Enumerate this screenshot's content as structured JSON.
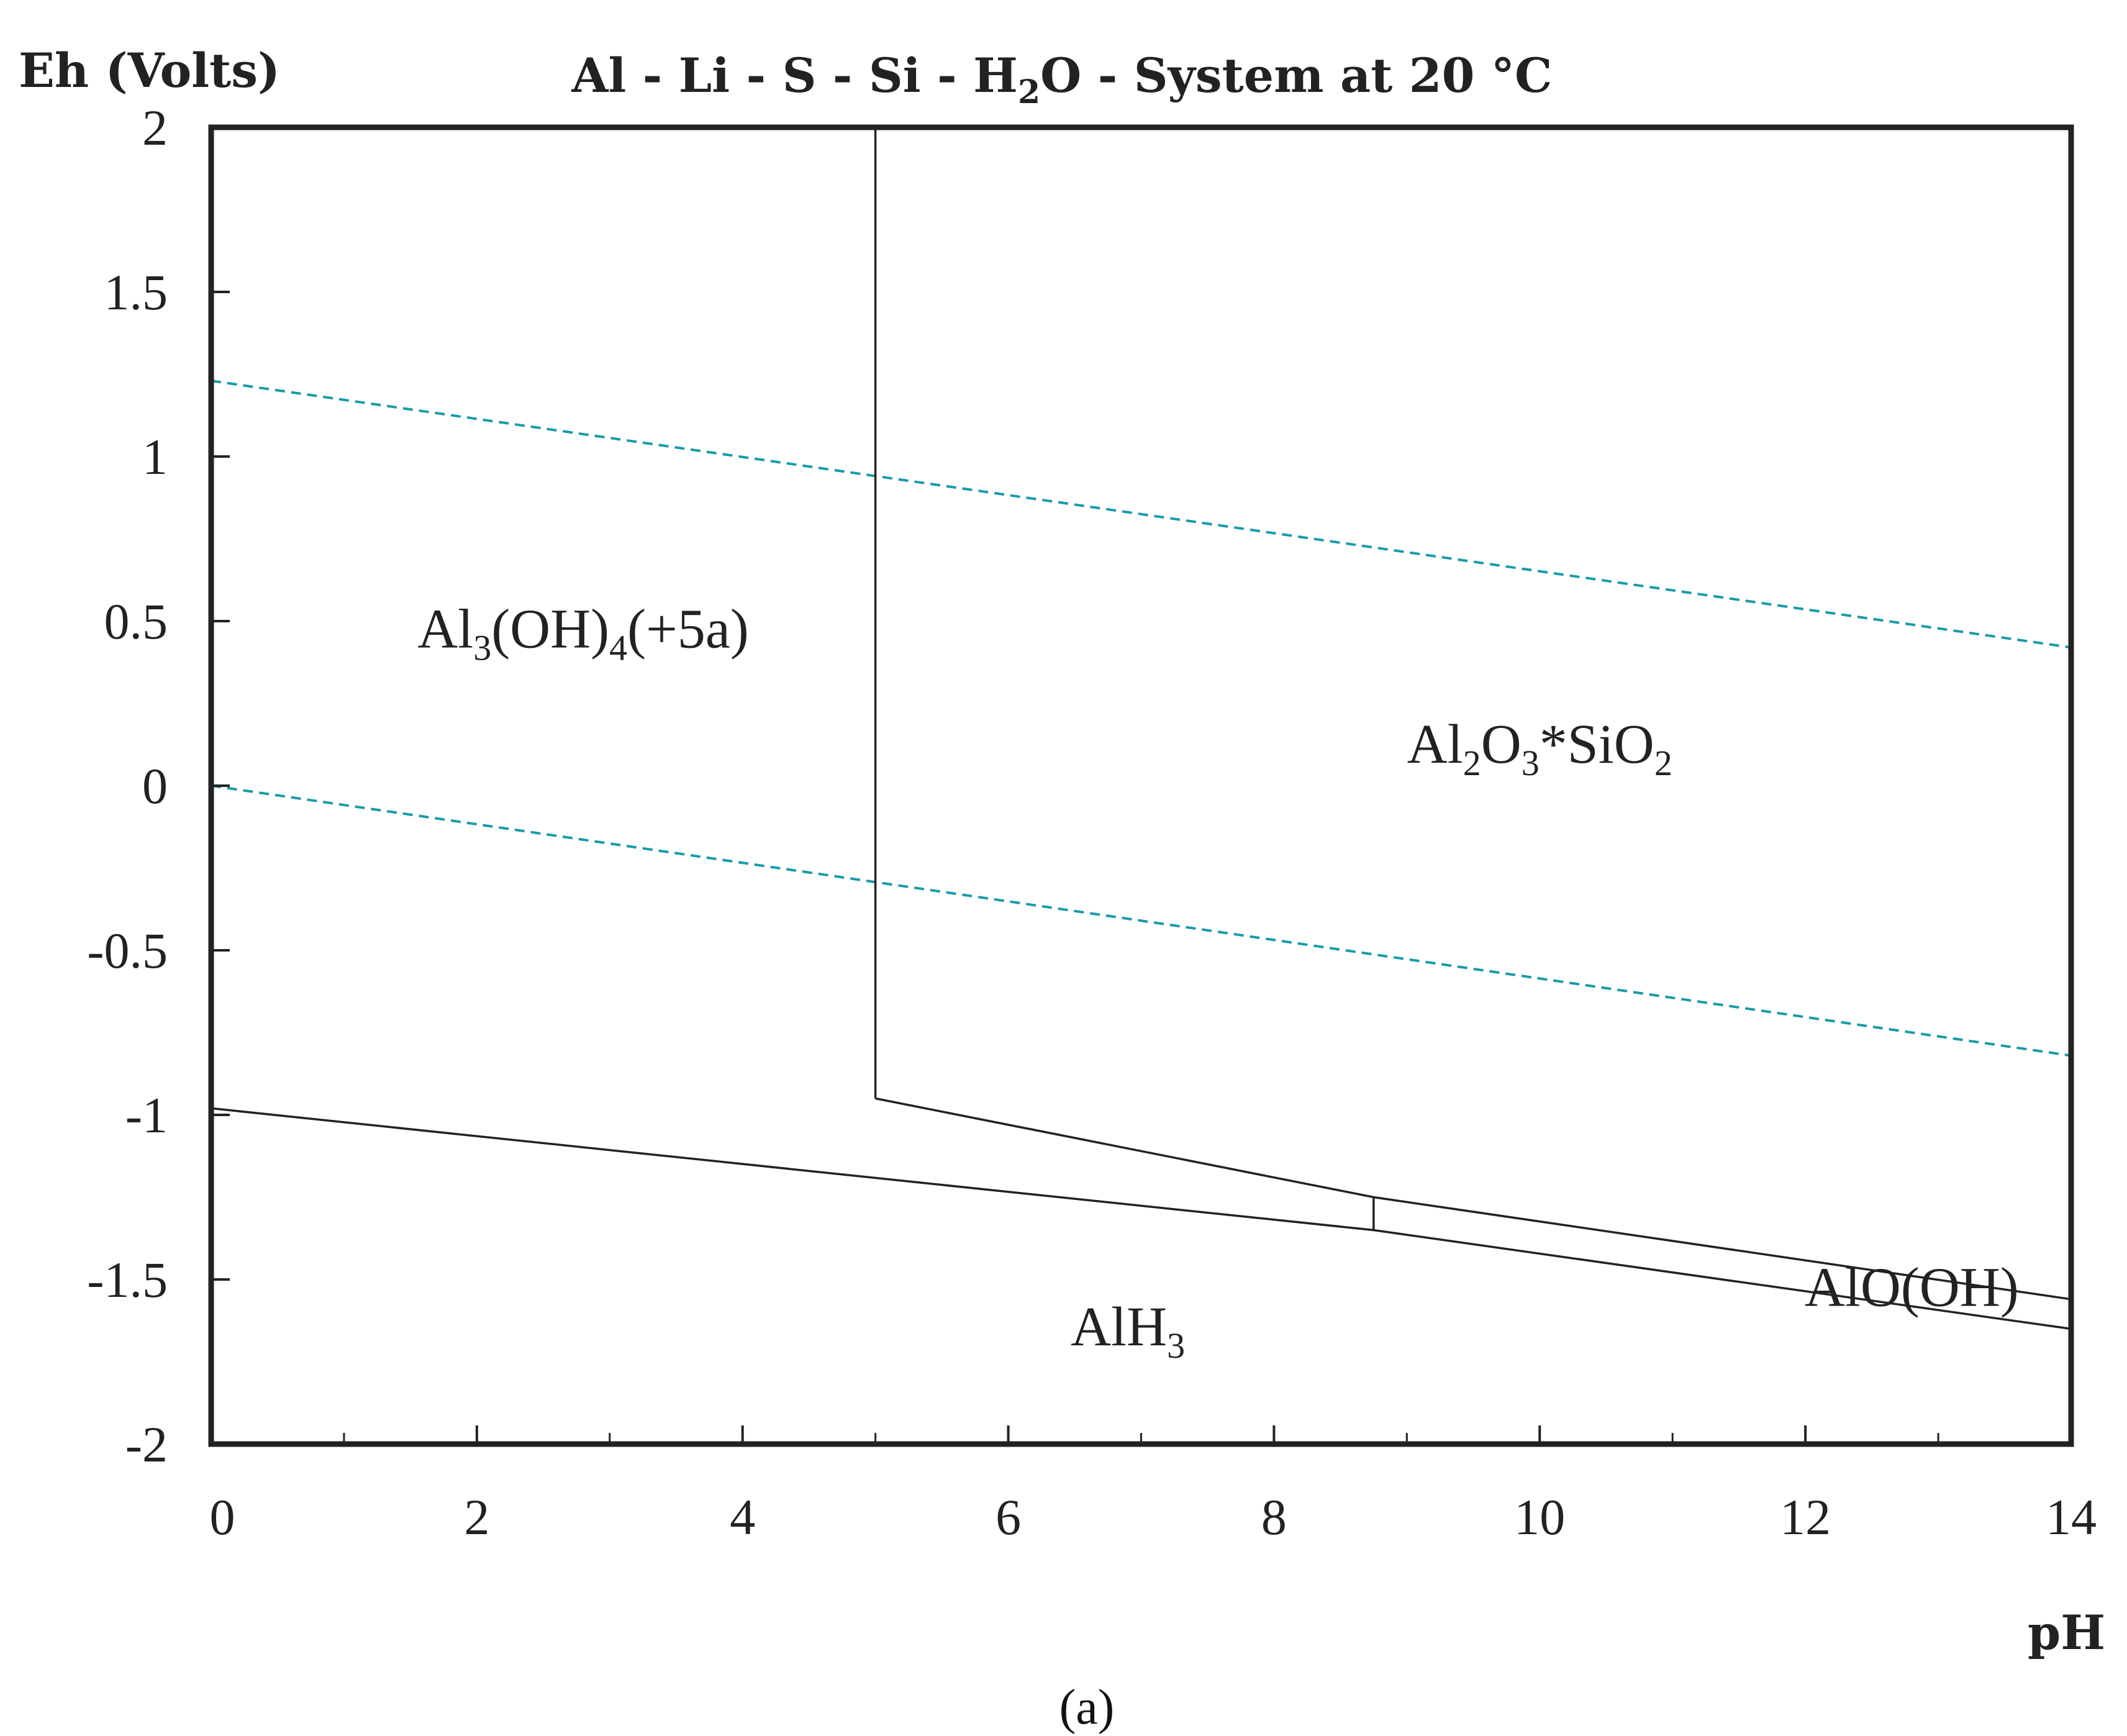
{
  "chart_data": {
    "type": "line",
    "title": "Al - Li - S - Si - H2O - System at 20 °C",
    "title_parts": {
      "pre": "Al - Li - S - Si - H",
      "sub": "2",
      "post": "O - System at 20 °C"
    },
    "ylabel": "Eh (Volts)",
    "xlabel": "pH",
    "panel_label": "(a)",
    "xlim": [
      0,
      14
    ],
    "ylim": [
      -2,
      2
    ],
    "x_ticks": [
      0,
      2,
      4,
      6,
      8,
      10,
      12,
      14
    ],
    "x_tick_labels": [
      "0",
      "2",
      "4",
      "6",
      "8",
      "10",
      "12",
      "14"
    ],
    "y_ticks": [
      2,
      1.5,
      1,
      0.5,
      0,
      -0.5,
      -1,
      -1.5,
      -2
    ],
    "y_tick_labels": [
      "2",
      "1.5",
      "1",
      "0.5",
      "0",
      "-0.5",
      "-1",
      "-1.5",
      "-2"
    ],
    "grid": false,
    "series": [
      {
        "style": "dashed",
        "color": "#1a9aa8",
        "x": [
          0,
          14
        ],
        "y": [
          1.23,
          0.42
        ]
      },
      {
        "style": "dashed",
        "color": "#1a9aa8",
        "x": [
          0,
          14
        ],
        "y": [
          0.0,
          -0.82
        ]
      },
      {
        "style": "solid",
        "color": "#222222",
        "x": [
          5,
          5
        ],
        "y": [
          2.0,
          -0.95
        ]
      },
      {
        "style": "solid",
        "color": "#222222",
        "x": [
          5,
          8.75,
          14
        ],
        "y": [
          -0.95,
          -1.25,
          -1.56
        ]
      },
      {
        "style": "solid",
        "color": "#222222",
        "x": [
          0,
          8.75,
          14
        ],
        "y": [
          -0.98,
          -1.35,
          -1.65
        ]
      },
      {
        "style": "solid",
        "color": "#222222",
        "x": [
          8.75,
          8.75
        ],
        "y": [
          -1.25,
          -1.35
        ]
      }
    ],
    "region_labels": [
      {
        "id": "al3oh4",
        "x": 2.8,
        "y": 0.42,
        "parts": [
          {
            "t": "Al"
          },
          {
            "t": "3",
            "sub": true
          },
          {
            "t": "(OH)"
          },
          {
            "t": "4",
            "sub": true
          },
          {
            "t": "(+5a)"
          }
        ]
      },
      {
        "id": "al2o3sio2",
        "x": 10.0,
        "y": 0.07,
        "parts": [
          {
            "t": "Al"
          },
          {
            "t": "2",
            "sub": true
          },
          {
            "t": "O"
          },
          {
            "t": "3",
            "sub": true
          },
          {
            "t": "*SiO"
          },
          {
            "t": "2",
            "sub": true
          }
        ]
      },
      {
        "id": "alh3",
        "x": 6.9,
        "y": -1.7,
        "parts": [
          {
            "t": "AlH"
          },
          {
            "t": "3",
            "sub": true
          }
        ]
      },
      {
        "id": "aloh",
        "x": 12.8,
        "y": -1.58,
        "parts": [
          {
            "t": "AlO(OH)"
          }
        ]
      }
    ]
  }
}
